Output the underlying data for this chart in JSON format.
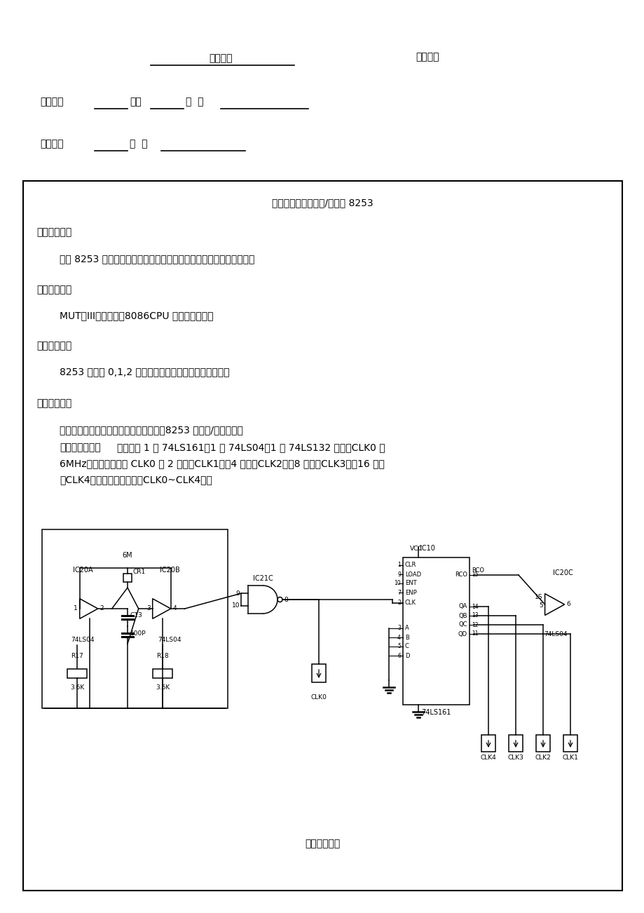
{
  "bg_color": "#ffffff",
  "title_subject": "微机原理",
  "title_report": "实验报告",
  "f1_t1": "专业班级",
  "f1_t2": "姓名",
  "f1_t3": "学  号",
  "f2_t1": "实验题目",
  "f2_t2": "日  期",
  "box_title": "实验三：可编程定时/计数器 8253",
  "s1_title": "一、实验目的",
  "s1_body": "掌握 8253 定时器的编程原理，用示波器观察不同模式下的输出波形。",
  "s2_title": "二、实验设备",
  "s2_body": "MUT－III型实验箱、8086CPU 模块、示波器。",
  "s3_title": "三、实验内容",
  "s3_body": "8253 计数器 0,1,2 工作于方波方式，观察其输出波形。",
  "s4_title": "四、实验原理",
  "s4_b1": "本实验用到两部分电路：脉冲产生电路、8253 定时器/计数器电路",
  "s4_b2_bold": "脉冲产生电路：",
  "s4_b2_r1": "该电路由 1 片 74LS161、1 片 74LS04、1 片 74LS132 组成。CLK0 是",
  "s4_b2_r2": "6MHz，输出时钟为该 CLK0 的 2 分频（CLK1），4 分频（CLK2），8 分频（CLK3），16 分频",
  "s4_b2_r3": "（CLK4），相应输出插孔（CLK0~CLK4）。",
  "circuit_caption": "脉冲产生电路"
}
